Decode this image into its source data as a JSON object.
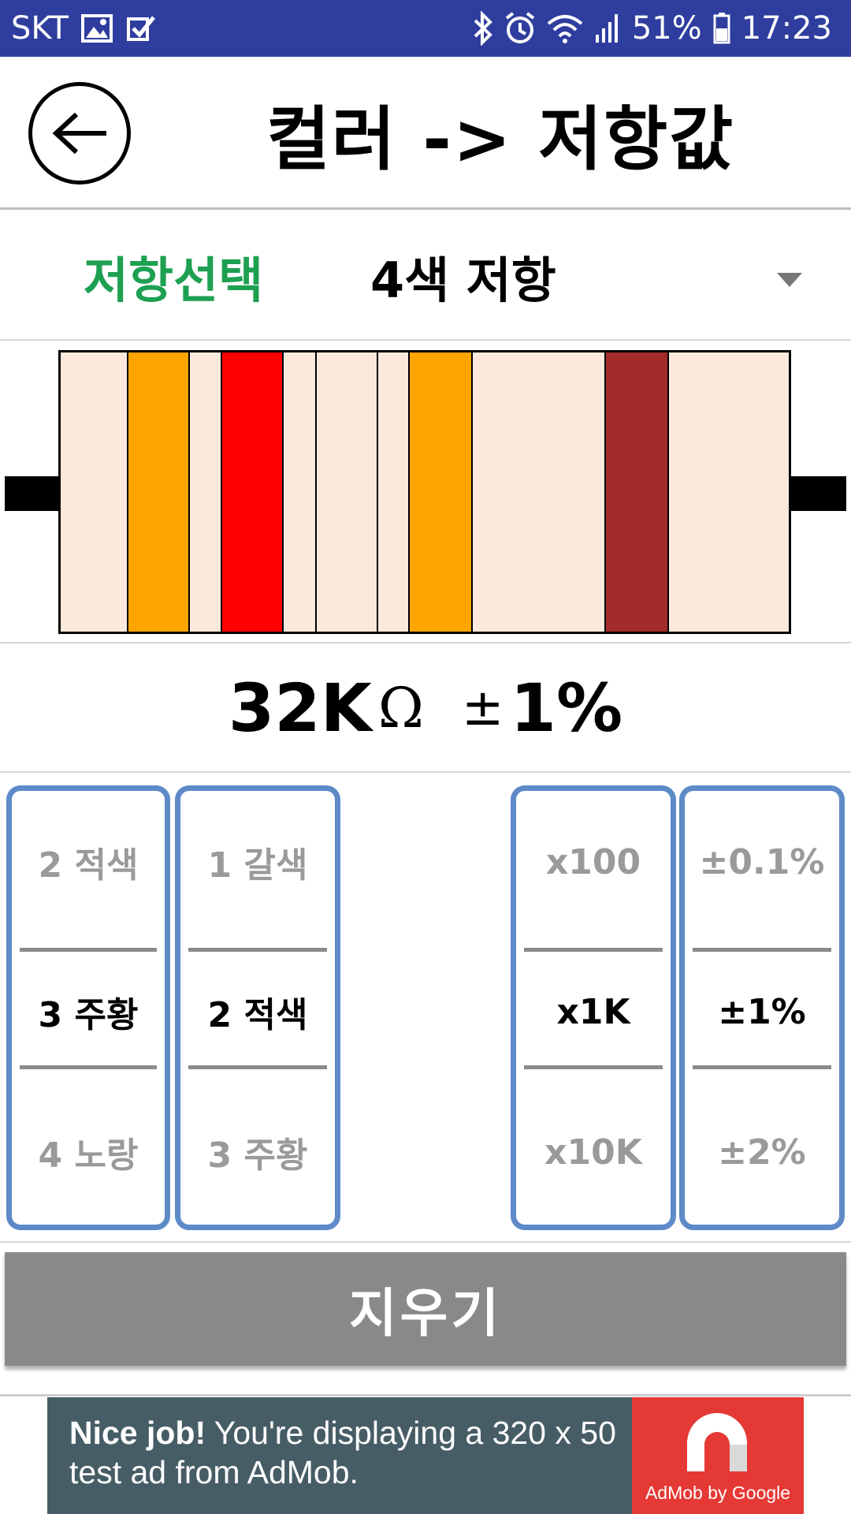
{
  "status_bar": {
    "carrier": "SKT",
    "battery": "51%",
    "time": "17:23",
    "icons": [
      "gallery-icon",
      "check-icon",
      "bluetooth-icon",
      "alarm-icon",
      "wifi-icon",
      "signal-icon",
      "battery-icon"
    ]
  },
  "header": {
    "title": "컬러 -> 저항값",
    "back_icon": "back-arrow-icon"
  },
  "selector": {
    "label": "저항선택",
    "value": "4색 저항",
    "label_color": "#1ea052"
  },
  "resistor": {
    "body_color": "#fce9dc",
    "bands": [
      {
        "name": "band-1",
        "color": "#ffa500"
      },
      {
        "name": "band-2",
        "color": "#ff0000"
      },
      {
        "name": "band-3",
        "color": "#fce9dc"
      },
      {
        "name": "band-4",
        "color": "#ffa500"
      },
      {
        "name": "band-5",
        "color": "#a52a2a"
      }
    ]
  },
  "result": {
    "value": "32K",
    "unit": "Ω",
    "tolerance_symbol": "±",
    "tolerance": "1%"
  },
  "pickers": {
    "digit1": {
      "above": "2 적색",
      "selected": "3 주황",
      "below": "4 노랑"
    },
    "digit2": {
      "above": "1 갈색",
      "selected": "2 적색",
      "below": "3 주황"
    },
    "multiplier": {
      "above": "x100",
      "selected": "x1K",
      "below": "x10K"
    },
    "tolerance": {
      "above": "±0.1%",
      "selected": "±1%",
      "below": "±2%"
    }
  },
  "actions": {
    "clear_label": "지우기"
  },
  "ad": {
    "headline": "Nice job!",
    "body": " You're displaying a 320 x 50 test ad from AdMob.",
    "brand": "AdMob by Google"
  }
}
